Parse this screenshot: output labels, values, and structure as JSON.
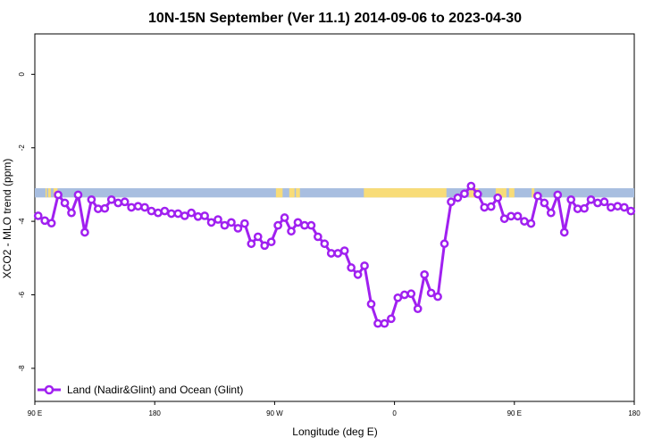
{
  "chart_data": {
    "type": "line",
    "title": "10N-15N September (Ver 11.1)   2014-09-06 to 2023-04-30",
    "xlabel": "Longitude (deg E)",
    "ylabel": "XCO2 - MLO trend (ppm)",
    "xlim": [
      90,
      540
    ],
    "ylim": [
      -8.9,
      1.1
    ],
    "x_ticks": [
      90,
      180,
      270,
      360,
      450,
      540
    ],
    "x_tick_labels": [
      "90 E",
      "180",
      "90 W",
      "0",
      "90 E",
      "180"
    ],
    "y_ticks": [
      0,
      -2,
      -4,
      -6,
      -8
    ],
    "y_tick_labels": [
      "0",
      "-2",
      "-4",
      "-6",
      "-8"
    ],
    "grid": false,
    "legend_position": "bottom-left",
    "colors": {
      "series": "#a020f0",
      "ocean_band": "#a8bee0",
      "land_band": "#f8dc78"
    },
    "surface_band": {
      "y_range": [
        -3.35,
        -3.1
      ],
      "land_spans": [
        [
          98,
          99
        ],
        [
          100,
          102
        ],
        [
          104,
          107
        ],
        [
          271,
          276
        ],
        [
          281,
          285
        ],
        [
          286,
          289
        ],
        [
          337,
          399
        ],
        [
          416,
          423
        ],
        [
          436,
          441
        ],
        [
          441,
          444
        ],
        [
          446,
          450
        ],
        [
          463,
          465
        ]
      ]
    },
    "series": [
      {
        "name": "Land (Nadir&Glint) and Ocean (Glint)",
        "x": [
          92.5,
          97.5,
          102.5,
          107.5,
          112.5,
          117.5,
          122.5,
          127.5,
          132.5,
          137.5,
          142.5,
          147.5,
          152.5,
          157.5,
          162.5,
          167.5,
          172.5,
          177.5,
          182.5,
          187.5,
          192.5,
          197.5,
          202.5,
          207.5,
          212.5,
          217.5,
          222.5,
          227.5,
          232.5,
          237.5,
          242.5,
          247.5,
          252.5,
          257.5,
          262.5,
          267.5,
          272.5,
          277.5,
          282.5,
          287.5,
          292.5,
          297.5,
          302.5,
          307.5,
          312.5,
          317.5,
          322.5,
          327.5,
          332.5,
          337.5,
          342.5,
          347.5,
          352.5,
          357.5,
          362.5,
          367.5,
          372.5,
          377.5,
          382.5,
          387.5,
          392.5,
          397.5,
          402.5,
          407.5,
          412.5,
          417.5,
          422.5,
          427.5,
          432.5,
          437.5,
          442.5,
          447.5,
          452.5,
          457.5,
          462.5,
          467.5,
          472.5,
          477.5,
          482.5,
          487.5,
          492.5,
          497.5,
          502.5,
          507.5,
          512.5,
          517.5,
          522.5,
          527.5,
          532.5,
          537.5
        ],
        "y": [
          -3.85,
          -3.98,
          -4.05,
          -3.28,
          -3.5,
          -3.77,
          -3.28,
          -4.3,
          -3.41,
          -3.66,
          -3.65,
          -3.41,
          -3.5,
          -3.47,
          -3.62,
          -3.59,
          -3.62,
          -3.72,
          -3.77,
          -3.72,
          -3.79,
          -3.79,
          -3.85,
          -3.77,
          -3.87,
          -3.85,
          -4.03,
          -3.95,
          -4.11,
          -4.03,
          -4.19,
          -4.06,
          -4.61,
          -4.42,
          -4.66,
          -4.56,
          -4.11,
          -3.9,
          -4.27,
          -4.03,
          -4.11,
          -4.11,
          -4.42,
          -4.61,
          -4.87,
          -4.87,
          -4.8,
          -5.26,
          -5.45,
          -5.21,
          -6.25,
          -6.78,
          -6.78,
          -6.65,
          -6.08,
          -6.0,
          -5.97,
          -6.38,
          -5.45,
          -5.95,
          -6.05,
          -4.61,
          -3.47,
          -3.36,
          -3.25,
          -3.04,
          -3.26,
          -3.62,
          -3.6,
          -3.36,
          -3.93,
          -3.86,
          -3.86,
          -4.0,
          -4.06,
          -3.31,
          -3.5,
          -3.77,
          -3.28,
          -4.3,
          -3.41,
          -3.66,
          -3.65,
          -3.41,
          -3.5,
          -3.47,
          -3.62,
          -3.59,
          -3.62,
          -3.72
        ]
      }
    ]
  }
}
